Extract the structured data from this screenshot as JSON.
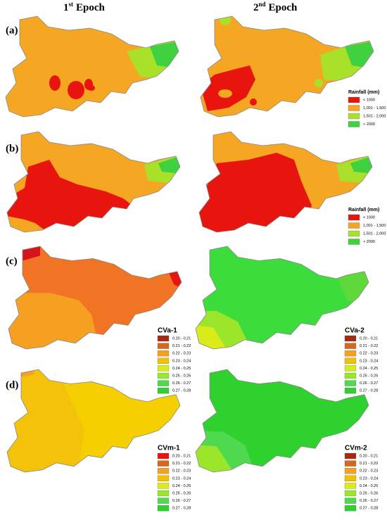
{
  "columns": [
    {
      "number": "1",
      "suffix": "st",
      "word": "Epoch"
    },
    {
      "number": "2",
      "suffix": "nd",
      "word": "Epoch"
    }
  ],
  "rows": [
    {
      "label": "(a)",
      "legends": [
        {
          "title": "Rainfall (mm)",
          "items": [
            {
              "label": "< 1000",
              "color": "#e8150f"
            },
            {
              "label": "1,001 - 1,500",
              "color": "#f5a623"
            },
            {
              "label": "1,501 - 2,000",
              "color": "#a8e02a"
            },
            {
              "label": "> 2000",
              "color": "#3fd13f"
            }
          ]
        }
      ]
    },
    {
      "label": "(b)",
      "legends": [
        {
          "title": "Rainfall (mm)",
          "items": [
            {
              "label": "< 1000",
              "color": "#e8150f"
            },
            {
              "label": "1,001 - 1,500",
              "color": "#f5a623"
            },
            {
              "label": "1,501 - 2,000",
              "color": "#a8e02a"
            },
            {
              "label": "> 2000",
              "color": "#3fd13f"
            }
          ]
        }
      ]
    },
    {
      "label": "(c)",
      "legends": [
        {
          "title": "CVa-1",
          "items": [
            {
              "label": "0.20 - 0.21",
              "color": "#a52a0f"
            },
            {
              "label": "0.21 - 0.22",
              "color": "#d2691e"
            },
            {
              "label": "0.22 - 0.23",
              "color": "#f5a020"
            },
            {
              "label": "0.23 - 0.24",
              "color": "#f2c200"
            },
            {
              "label": "0.24 - 0.25",
              "color": "#d9ec1a"
            },
            {
              "label": "0.25 - 0.26",
              "color": "#9be62a"
            },
            {
              "label": "0.26 - 0.27",
              "color": "#4fd94f"
            },
            {
              "label": "0.27 - 0.28",
              "color": "#2ed12e"
            }
          ]
        },
        {
          "title": "CVa-2",
          "items": [
            {
              "label": "0.20 - 0.21",
              "color": "#a52a0f"
            },
            {
              "label": "0.21 - 0.22",
              "color": "#d2691e"
            },
            {
              "label": "0.22 - 0.23",
              "color": "#f5a020"
            },
            {
              "label": "0.23 - 0.24",
              "color": "#f2c200"
            },
            {
              "label": "0.24 - 0.25",
              "color": "#d9ec1a"
            },
            {
              "label": "0.25 - 0.26",
              "color": "#9be62a"
            },
            {
              "label": "0.26 - 0.27",
              "color": "#4fd94f"
            },
            {
              "label": "0.27 - 0.28",
              "color": "#2ed12e"
            }
          ]
        }
      ]
    },
    {
      "label": "(d)",
      "legends": [
        {
          "title": "CVm-1",
          "items": [
            {
              "label": "0.20 - 0.21",
              "color": "#e8150f"
            },
            {
              "label": "0.21 - 0.22",
              "color": "#d2691e"
            },
            {
              "label": "0.22 - 0.23",
              "color": "#f5a020"
            },
            {
              "label": "0.23 - 0.24",
              "color": "#f2c200"
            },
            {
              "label": "0.24 - 0.25",
              "color": "#d9ec1a"
            },
            {
              "label": "0.25 - 0.26",
              "color": "#9be62a"
            },
            {
              "label": "0.26 - 0.27",
              "color": "#4fd94f"
            },
            {
              "label": "0.27 - 0.28",
              "color": "#2ed12e"
            }
          ]
        },
        {
          "title": "CVm-2",
          "items": [
            {
              "label": "0.20 - 0.21",
              "color": "#a52a0f"
            },
            {
              "label": "0.21 - 0.22",
              "color": "#d2691e"
            },
            {
              "label": "0.22 - 0.23",
              "color": "#f5a020"
            },
            {
              "label": "0.23 - 0.24",
              "color": "#f2c200"
            },
            {
              "label": "0.24 - 0.25",
              "color": "#d9ec1a"
            },
            {
              "label": "0.25 - 0.26",
              "color": "#9be62a"
            },
            {
              "label": "0.26 - 0.27",
              "color": "#4fd94f"
            },
            {
              "label": "0.27 - 0.28",
              "color": "#2ed12e"
            }
          ]
        }
      ]
    }
  ]
}
